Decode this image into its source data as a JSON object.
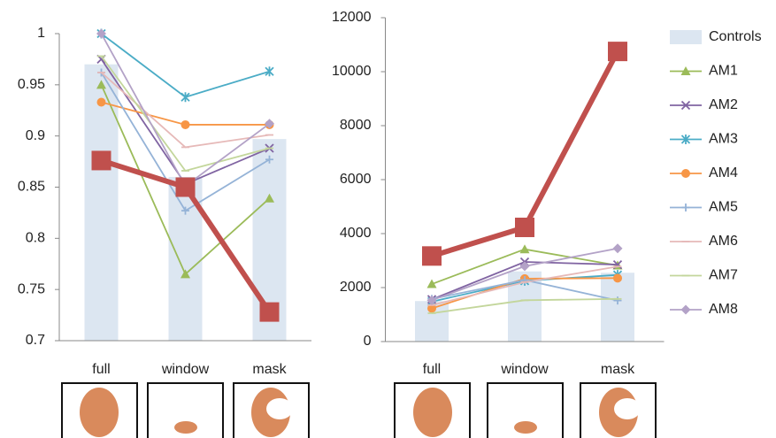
{
  "chart_data": [
    {
      "type": "combo",
      "categories": [
        "full",
        "window",
        "mask"
      ],
      "ylim": [
        0.7,
        1
      ],
      "yticks": [
        0.7,
        0.75,
        0.8,
        0.85,
        0.9,
        0.95,
        1
      ],
      "series": [
        {
          "type": "bar",
          "color": "#dce6f1",
          "values": [
            0.97,
            0.86,
            0.897
          ]
        },
        {
          "type": "line",
          "marker": "triangle",
          "color": "#9bbb59",
          "values": [
            0.95,
            0.765,
            0.839
          ]
        },
        {
          "type": "line",
          "marker": "x",
          "color": "#8064a2",
          "values": [
            0.975,
            0.853,
            0.888
          ]
        },
        {
          "type": "line",
          "marker": "star",
          "color": "#4bacc6",
          "values": [
            1,
            0.938,
            0.963
          ]
        },
        {
          "type": "line",
          "marker": "circle",
          "color": "#f79646",
          "values": [
            0.933,
            0.911,
            0.911
          ]
        },
        {
          "type": "line",
          "marker": "plus",
          "color": "#95b3d7",
          "values": [
            0.962,
            0.827,
            0.877
          ]
        },
        {
          "type": "line",
          "marker": "dash",
          "color": "#e6b9b8",
          "values": [
            0.962,
            0.889,
            0.901
          ]
        },
        {
          "type": "line",
          "marker": "dash",
          "color": "#c3d69b",
          "values": [
            0.978,
            0.866,
            0.888
          ]
        },
        {
          "type": "line",
          "marker": "diamond",
          "color": "#b3a2c7",
          "values": [
            1,
            0.851,
            0.912
          ]
        },
        {
          "type": "line",
          "marker": "square",
          "color": "#c0504d",
          "values": [
            0.876,
            0.85,
            0.728
          ]
        }
      ]
    },
    {
      "type": "combo",
      "categories": [
        "full",
        "window",
        "mask"
      ],
      "ylim": [
        0,
        12000
      ],
      "yticks": [
        0,
        2000,
        4000,
        6000,
        8000,
        10000,
        12000
      ],
      "series": [
        {
          "type": "bar",
          "name": "Controls",
          "color": "#dce6f1",
          "values": [
            1500,
            2600,
            2550
          ]
        },
        {
          "type": "line",
          "name": "AM1",
          "marker": "triangle",
          "color": "#9bbb59",
          "values": [
            2130,
            3420,
            2820
          ]
        },
        {
          "type": "line",
          "name": "AM2",
          "marker": "x",
          "color": "#8064a2",
          "values": [
            1560,
            2950,
            2850
          ]
        },
        {
          "type": "line",
          "name": "AM3",
          "marker": "star",
          "color": "#4bacc6",
          "values": [
            1480,
            2250,
            2470
          ]
        },
        {
          "type": "line",
          "name": "AM4",
          "marker": "circle",
          "color": "#f79646",
          "values": [
            1230,
            2330,
            2350
          ]
        },
        {
          "type": "line",
          "name": "AM5",
          "marker": "plus",
          "color": "#95b3d7",
          "values": [
            1580,
            2280,
            1520
          ]
        },
        {
          "type": "line",
          "name": "AM6",
          "marker": "dash",
          "color": "#e6b9b8",
          "values": [
            1350,
            2200,
            2780
          ]
        },
        {
          "type": "line",
          "name": "AM7",
          "marker": "dash",
          "color": "#c3d69b",
          "values": [
            1050,
            1530,
            1580
          ]
        },
        {
          "type": "line",
          "name": "AM8",
          "marker": "diamond",
          "color": "#b3a2c7",
          "values": [
            1530,
            2790,
            3450
          ]
        },
        {
          "type": "line",
          "marker": "square",
          "color": "#c0504d",
          "values": [
            3170,
            4230,
            10750
          ]
        }
      ]
    }
  ]
}
